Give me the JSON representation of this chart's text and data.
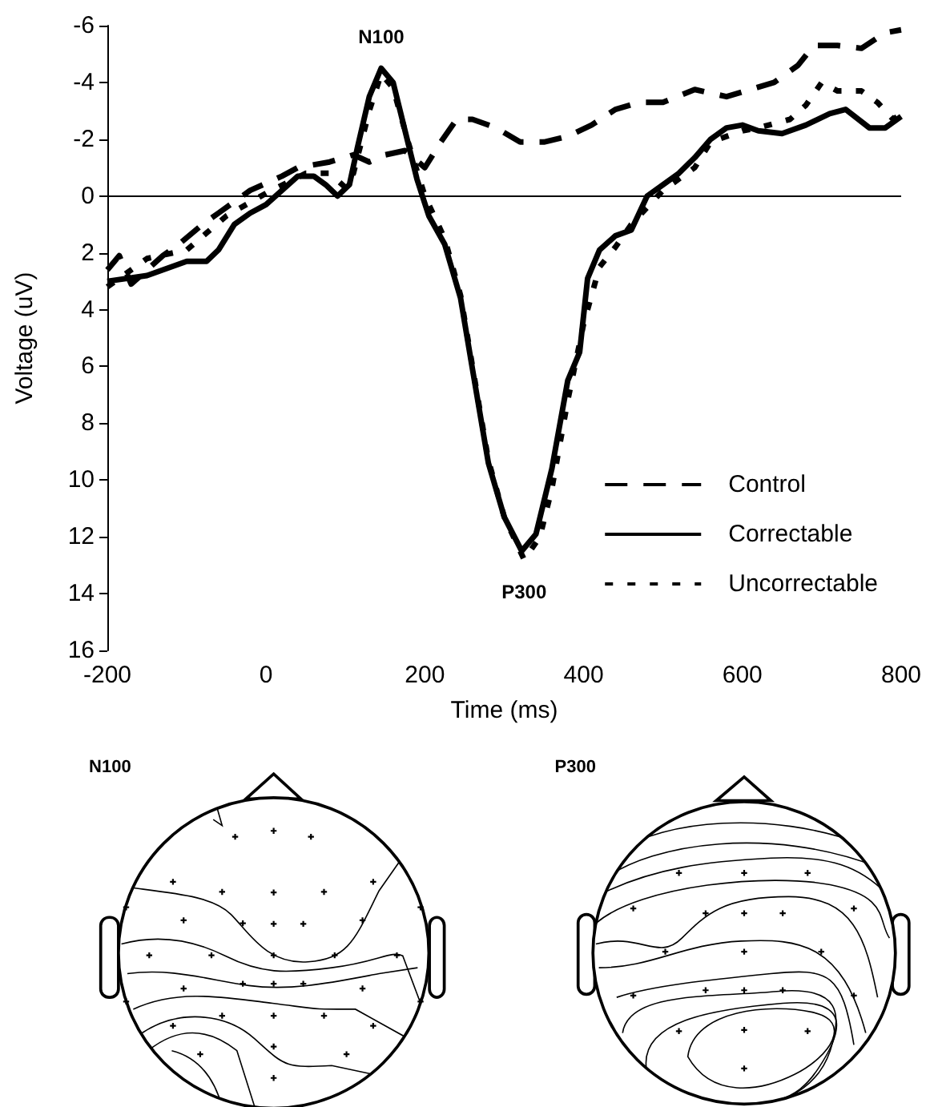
{
  "chart_data": {
    "type": "line",
    "xlabel": "Time (ms)",
    "ylabel": "Voltage (uV)",
    "xlim": [
      -200,
      800
    ],
    "xticks": [
      -200,
      0,
      200,
      400,
      600,
      800
    ],
    "ylim": [
      16,
      -6
    ],
    "yticks": [
      -6,
      -4,
      -2,
      0,
      2,
      4,
      6,
      8,
      10,
      12,
      14,
      16
    ],
    "grid": false,
    "legend": "bottom right",
    "ref_lines": [
      {
        "axis": "y",
        "value": 0,
        "color": "#000000",
        "line_style": "solid"
      }
    ],
    "annotations": [
      {
        "text": "N100",
        "x": 145,
        "y": -4.6
      },
      {
        "text": "P300",
        "x": 325,
        "y": 12.8
      },
      "N100",
      "P300"
    ],
    "series": [
      {
        "name": "Control",
        "color": "#000000",
        "line_style": "dashed",
        "x": [
          -200,
          -185,
          -170,
          -130,
          -110,
          -80,
          -60,
          -20,
          20,
          40,
          80,
          110,
          130,
          150,
          175,
          200,
          220,
          240,
          260,
          290,
          320,
          350,
          380,
          410,
          440,
          470,
          500,
          540,
          580,
          610,
          640,
          670,
          690,
          720,
          750,
          780,
          800
        ],
        "values": [
          2.6,
          2.1,
          3.1,
          2.1,
          1.7,
          1.0,
          0.6,
          -0.2,
          -0.7,
          -1.0,
          -1.2,
          -1.45,
          -1.2,
          -1.45,
          -1.6,
          -1.0,
          -1.9,
          -2.7,
          -2.7,
          -2.4,
          -1.9,
          -1.9,
          -2.1,
          -2.5,
          -3.05,
          -3.3,
          -3.3,
          -3.75,
          -3.5,
          -3.75,
          -4.0,
          -4.6,
          -5.3,
          -5.3,
          -5.2,
          -5.75,
          -5.85
        ]
      },
      {
        "name": "Correctable",
        "color": "#000000",
        "line_style": "solid",
        "x": [
          -200,
          -150,
          -100,
          -75,
          -60,
          -40,
          -20,
          0,
          20,
          40,
          60,
          75,
          90,
          105,
          115,
          130,
          145,
          160,
          175,
          190,
          205,
          225,
          245,
          260,
          280,
          300,
          322,
          340,
          360,
          380,
          395,
          405,
          420,
          440,
          460,
          480,
          500,
          520,
          540,
          560,
          580,
          600,
          620,
          650,
          680,
          710,
          730,
          760,
          780,
          800
        ],
        "values": [
          3.0,
          2.8,
          2.3,
          2.3,
          1.9,
          1.0,
          0.6,
          0.3,
          -0.2,
          -0.7,
          -0.7,
          -0.4,
          0.0,
          -0.4,
          -1.7,
          -3.5,
          -4.5,
          -4.0,
          -2.3,
          -0.6,
          0.7,
          1.7,
          3.6,
          6.1,
          9.4,
          11.3,
          12.5,
          11.9,
          9.6,
          6.5,
          5.5,
          2.9,
          1.9,
          1.4,
          1.2,
          0.0,
          -0.4,
          -0.8,
          -1.35,
          -2.0,
          -2.4,
          -2.5,
          -2.3,
          -2.2,
          -2.5,
          -2.9,
          -3.05,
          -2.4,
          -2.4,
          -2.8
        ]
      },
      {
        "name": "Uncorrectable",
        "color": "#000000",
        "line_style": "dotted",
        "x": [
          -200,
          -150,
          -100,
          -50,
          0,
          50,
          80,
          100,
          110,
          130,
          145,
          160,
          180,
          200,
          225,
          245,
          260,
          280,
          300,
          325,
          345,
          360,
          380,
          400,
          420,
          440,
          460,
          480,
          500,
          540,
          560,
          600,
          620,
          660,
          680,
          700,
          720,
          750,
          770,
          790,
          800
        ],
        "values": [
          3.2,
          2.2,
          1.9,
          0.7,
          -0.1,
          -0.8,
          -0.8,
          -0.3,
          -0.8,
          -3.0,
          -4.3,
          -3.8,
          -1.8,
          0.0,
          1.5,
          3.5,
          6.0,
          9.3,
          11.3,
          12.8,
          12.0,
          10.3,
          7.2,
          4.5,
          2.5,
          1.8,
          1.0,
          0.4,
          -0.2,
          -1.0,
          -1.9,
          -2.3,
          -2.4,
          -2.7,
          -3.2,
          -4.0,
          -3.7,
          -3.7,
          -3.3,
          -2.7,
          -2.9
        ]
      }
    ]
  }
}
